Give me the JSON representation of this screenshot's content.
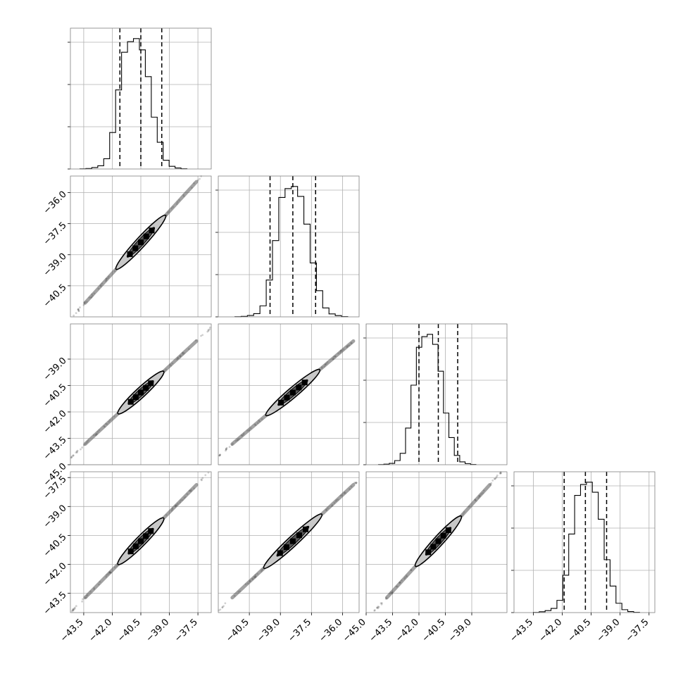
{
  "chart_data": {
    "type": "corner",
    "n_params": 4,
    "grid": true,
    "axes": [
      {
        "range": [
          -44.2,
          -36.8
        ],
        "ticks": [
          -43.5,
          -42.0,
          -40.5,
          -39.0,
          -37.5
        ],
        "tick_labels": [
          "−43.5",
          "−42.0",
          "−40.5",
          "−39.0",
          "−37.5"
        ]
      },
      {
        "range": [
          -42.0,
          -35.2
        ],
        "ticks": [
          -40.5,
          -39.0,
          -37.5,
          -36.0
        ],
        "tick_labels": [
          "−40.5",
          "−39.0",
          "−37.5",
          "−36.0"
        ]
      },
      {
        "range": [
          -45.0,
          -37.0
        ],
        "ticks": [
          -45.0,
          -43.5,
          -42.0,
          -40.5,
          -39.0
        ],
        "tick_labels": [
          "−45.0",
          "−43.5",
          "−42.0",
          "−40.5",
          "−39.0"
        ]
      },
      {
        "range": [
          -44.5,
          -37.2
        ],
        "ticks": [
          -43.5,
          -42.0,
          -40.5,
          -39.0,
          -37.5
        ],
        "tick_labels": [
          "−43.5",
          "−42.0",
          "−40.5",
          "−39.0",
          "−37.5"
        ]
      }
    ],
    "histograms": [
      {
        "param": 0,
        "edges_start": -43.7,
        "bin_width": 0.3125,
        "counts": [
          1,
          5,
          14,
          31,
          100,
          355,
          770,
          1137,
          1240,
          1270,
          1160,
          900,
          505,
          260,
          85,
          26,
          10,
          2
        ],
        "quantiles": [
          -41.6,
          -40.5,
          -39.4
        ]
      },
      {
        "param": 1,
        "edges_start": -41.2,
        "bin_width": 0.303,
        "counts": [
          1,
          5,
          13,
          31,
          105,
          352,
          728,
          1140,
          1225,
          1245,
          1150,
          885,
          515,
          250,
          85,
          28,
          12,
          2
        ],
        "quantiles": [
          -39.5,
          -38.4,
          -37.3
        ]
      },
      {
        "param": 2,
        "edges_start": -44.3,
        "bin_width": 0.3077,
        "counts": [
          1,
          6,
          13,
          40,
          110,
          355,
          770,
          1137,
          1240,
          1262,
          1165,
          905,
          500,
          263,
          90,
          28,
          11,
          2
        ],
        "quantiles": [
          -42.0,
          -40.9,
          -39.8
        ]
      },
      {
        "param": 3,
        "edges_start": -43.5,
        "bin_width": 0.3061,
        "counts": [
          1,
          8,
          19,
          40,
          118,
          360,
          757,
          1130,
          1235,
          1257,
          1160,
          900,
          510,
          256,
          90,
          28,
          10,
          2
        ],
        "quantiles": [
          -41.9,
          -40.8,
          -39.7
        ]
      }
    ],
    "pairs": [
      {
        "x": 0,
        "y": 1,
        "center": [
          -40.5,
          -38.4
        ],
        "slope": 1.0,
        "half_length": 3.9,
        "contour_half": 1.3,
        "contour_halfwidth": 0.2
      },
      {
        "x": 0,
        "y": 2,
        "center": [
          -40.5,
          -40.9
        ],
        "slope": 1.0,
        "half_length": 3.9,
        "contour_half": 1.2,
        "contour_halfwidth": 0.15
      },
      {
        "x": 1,
        "y": 2,
        "center": [
          -38.4,
          -40.9
        ],
        "slope": 1.0,
        "half_length": 3.9,
        "contour_half": 1.3,
        "contour_halfwidth": 0.2
      },
      {
        "x": 0,
        "y": 3,
        "center": [
          -40.5,
          -40.8
        ],
        "slope": 1.0,
        "half_length": 3.9,
        "contour_half": 1.2,
        "contour_halfwidth": 0.15
      },
      {
        "x": 1,
        "y": 3,
        "center": [
          -38.4,
          -40.8
        ],
        "slope": 1.0,
        "half_length": 3.9,
        "contour_half": 1.4,
        "contour_halfwidth": 0.22
      },
      {
        "x": 2,
        "y": 3,
        "center": [
          -40.9,
          -40.8
        ],
        "slope": 1.0,
        "half_length": 3.9,
        "contour_half": 1.3,
        "contour_halfwidth": 0.2
      }
    ]
  }
}
